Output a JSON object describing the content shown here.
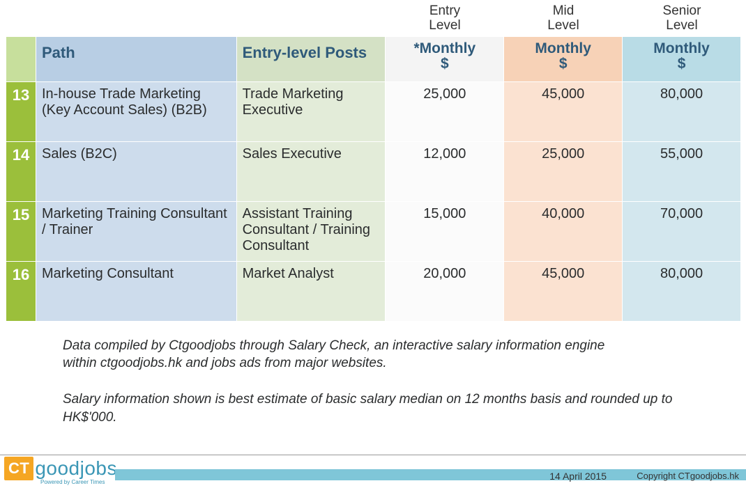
{
  "colors": {
    "idx_header_bg": "#c7df9c",
    "path_header_bg": "#b8cee4",
    "posts_header_bg": "#d4e1c5",
    "entry_header_bg": "#f4f4f4",
    "mid_header_bg": "#f7d2b7",
    "senior_header_bg": "#b9dce6",
    "idx_cell_bg": "#9bbf3b",
    "path_cell_bg": "#cddcec",
    "posts_cell_bg": "#e3ecd9",
    "entry_cell_bg": "#fbfbfb",
    "mid_cell_bg": "#fbe2d1",
    "senior_cell_bg": "#d3e7ee",
    "header_text": "#2f5a7a",
    "footer_stripe": "#7fc6d8",
    "logo_ct_bg": "#f5a623",
    "logo_goodjobs": "#3a96b5",
    "logo_tag": "#3a96b5"
  },
  "levels": {
    "entry": "Entry\nLevel",
    "mid": "Mid\nLevel",
    "senior": "Senior\nLevel"
  },
  "headers": {
    "path": "Path",
    "posts": "Entry-level Posts",
    "entry": "*Monthly $",
    "mid": "Monthly $",
    "senior": "Monthly $"
  },
  "rows": [
    {
      "idx": "13",
      "path": "In-house Trade Marketing (Key Account Sales) (B2B)",
      "posts": "Trade Marketing Executive",
      "entry": "25,000",
      "mid": "45,000",
      "senior": "80,000"
    },
    {
      "idx": "14",
      "path": "Sales (B2C)",
      "posts": "Sales Executive",
      "entry": "12,000",
      "mid": "25,000",
      "senior": "55,000"
    },
    {
      "idx": "15",
      "path": "Marketing Training Consultant / Trainer",
      "posts": "Assistant Training Consultant / Training Consultant",
      "entry": "15,000",
      "mid": "40,000",
      "senior": "70,000"
    },
    {
      "idx": "16",
      "path": "Marketing Consultant",
      "posts": "Market Analyst",
      "entry": "20,000",
      "mid": "45,000",
      "senior": "80,000"
    }
  ],
  "footnotes": {
    "line1": "Data compiled by Ctgoodjobs through Salary Check,  an interactive salary information engine within ctgoodjobs.hk and jobs ads from major websites.",
    "line2": "Salary information shown is best estimate of basic salary median on 12 months basis and rounded up to HK$'000."
  },
  "footer": {
    "date": "14 April 2015",
    "copyright": "Copyright CTgoodjobs.hk"
  },
  "logo": {
    "ct": "CT",
    "goodjobs": "goodjobs",
    "tagline": "Powered by Career Times"
  }
}
